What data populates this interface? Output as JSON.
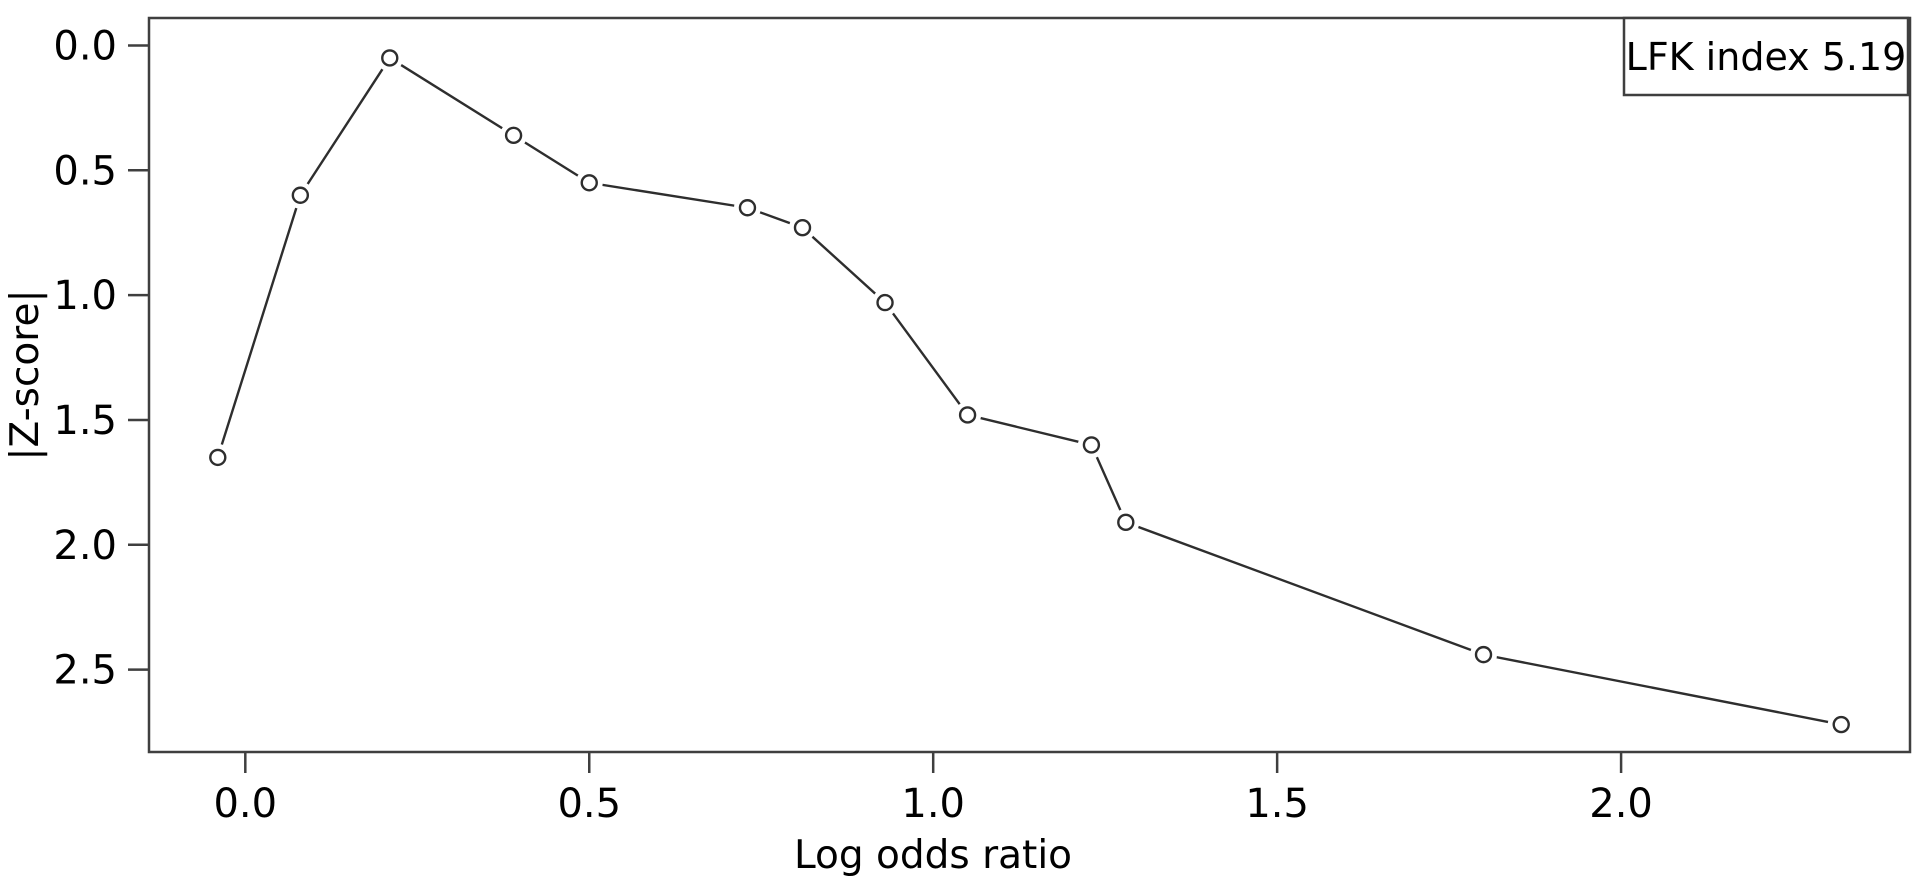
{
  "figure": {
    "background": "#ffffff",
    "frame_color": "#3f3f3f",
    "line_color": "#2e2e2e",
    "marker_fill": "#ffffff",
    "text_color": "#000000"
  },
  "chart_data": {
    "type": "line",
    "title": "",
    "xlabel": "Log odds ratio",
    "ylabel": "|Z-score|",
    "legend": "LFK index 5.19",
    "legend_position": "top-right",
    "marker": "open-circle",
    "grid": false,
    "y_axis_inverted": true,
    "x_ticks": [
      0.0,
      0.5,
      1.0,
      1.5,
      2.0
    ],
    "y_ticks": [
      0.0,
      0.5,
      1.0,
      1.5,
      2.0,
      2.5
    ],
    "xlim": [
      -0.14,
      2.42
    ],
    "ylim": [
      -0.11,
      2.83
    ],
    "points": [
      {
        "x": -0.04,
        "y": 1.65
      },
      {
        "x": 0.08,
        "y": 0.6
      },
      {
        "x": 0.21,
        "y": 0.05
      },
      {
        "x": 0.39,
        "y": 0.36
      },
      {
        "x": 0.5,
        "y": 0.55
      },
      {
        "x": 0.73,
        "y": 0.65
      },
      {
        "x": 0.81,
        "y": 0.73
      },
      {
        "x": 0.93,
        "y": 1.03
      },
      {
        "x": 1.05,
        "y": 1.48
      },
      {
        "x": 1.23,
        "y": 1.6
      },
      {
        "x": 1.28,
        "y": 1.91
      },
      {
        "x": 1.8,
        "y": 2.44
      },
      {
        "x": 2.32,
        "y": 2.72
      }
    ]
  }
}
